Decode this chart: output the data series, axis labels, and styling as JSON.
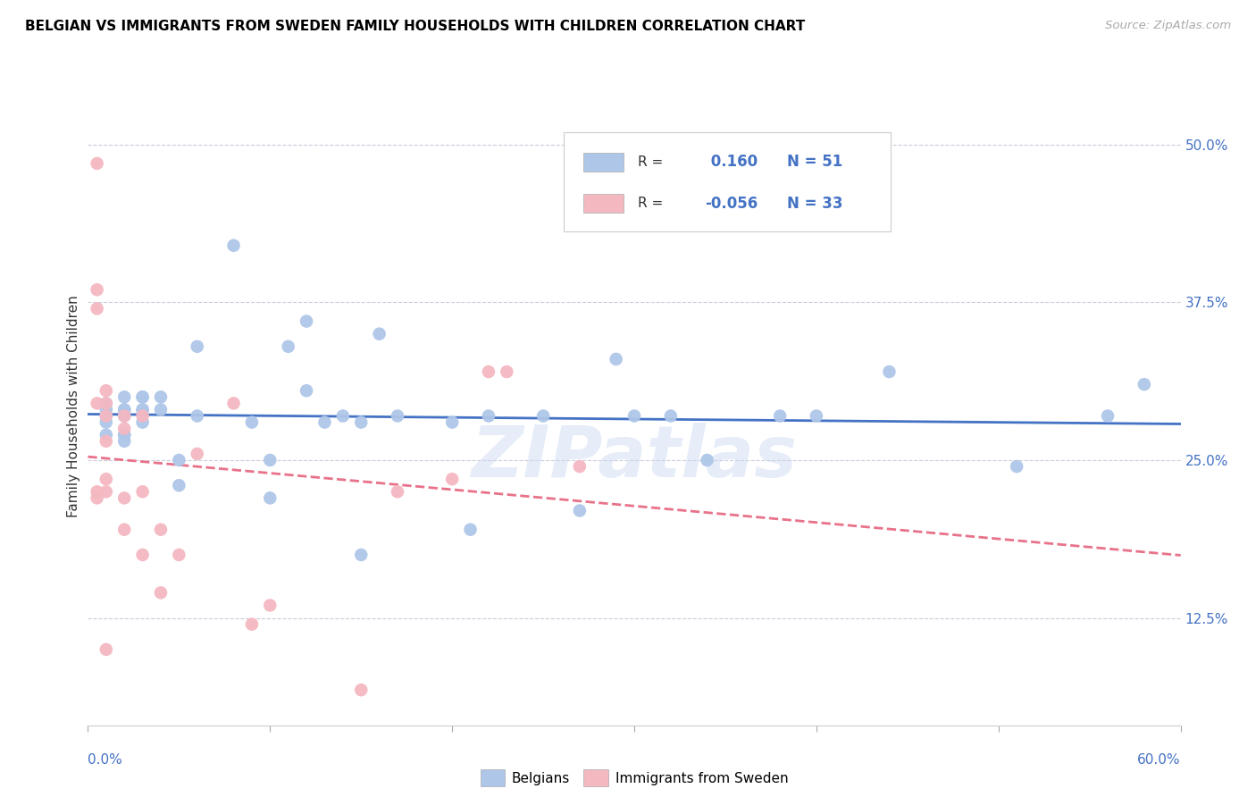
{
  "title": "BELGIAN VS IMMIGRANTS FROM SWEDEN FAMILY HOUSEHOLDS WITH CHILDREN CORRELATION CHART",
  "source": "Source: ZipAtlas.com",
  "ylabel": "Family Households with Children",
  "ytick_values": [
    0.125,
    0.25,
    0.375,
    0.5
  ],
  "ytick_labels": [
    "12.5%",
    "25.0%",
    "37.5%",
    "50.0%"
  ],
  "legend_label1": "Belgians",
  "legend_label2": "Immigrants from Sweden",
  "R1": 0.16,
  "N1": 51,
  "R2": -0.056,
  "N2": 33,
  "color_belgian": "#aec6e8",
  "color_swedish": "#f4b8c1",
  "line_color_belgian": "#4472c4",
  "line_color_swedish": "#e8728a",
  "watermark": "ZIPatlas",
  "xlim": [
    0.0,
    0.6
  ],
  "ylim": [
    0.04,
    0.545
  ],
  "belgians_x": [
    0.01,
    0.01,
    0.01,
    0.01,
    0.01,
    0.02,
    0.02,
    0.02,
    0.02,
    0.02,
    0.02,
    0.02,
    0.03,
    0.03,
    0.03,
    0.03,
    0.03,
    0.04,
    0.04,
    0.05,
    0.05,
    0.06,
    0.06,
    0.08,
    0.09,
    0.1,
    0.1,
    0.11,
    0.12,
    0.12,
    0.13,
    0.14,
    0.15,
    0.15,
    0.16,
    0.17,
    0.2,
    0.21,
    0.22,
    0.25,
    0.27,
    0.29,
    0.3,
    0.32,
    0.34,
    0.38,
    0.4,
    0.44,
    0.51,
    0.56,
    0.58
  ],
  "belgians_y": [
    0.285,
    0.295,
    0.28,
    0.27,
    0.29,
    0.285,
    0.29,
    0.27,
    0.29,
    0.3,
    0.265,
    0.27,
    0.3,
    0.3,
    0.29,
    0.28,
    0.29,
    0.3,
    0.29,
    0.25,
    0.23,
    0.285,
    0.34,
    0.42,
    0.28,
    0.25,
    0.22,
    0.34,
    0.36,
    0.305,
    0.28,
    0.285,
    0.28,
    0.175,
    0.35,
    0.285,
    0.28,
    0.195,
    0.285,
    0.285,
    0.21,
    0.33,
    0.285,
    0.285,
    0.25,
    0.285,
    0.285,
    0.32,
    0.245,
    0.285,
    0.31
  ],
  "swedish_x": [
    0.005,
    0.005,
    0.005,
    0.005,
    0.005,
    0.005,
    0.01,
    0.01,
    0.01,
    0.01,
    0.01,
    0.01,
    0.01,
    0.02,
    0.02,
    0.02,
    0.02,
    0.03,
    0.03,
    0.03,
    0.04,
    0.04,
    0.05,
    0.06,
    0.08,
    0.09,
    0.1,
    0.15,
    0.17,
    0.2,
    0.22,
    0.23,
    0.27
  ],
  "swedish_y": [
    0.485,
    0.385,
    0.37,
    0.295,
    0.225,
    0.22,
    0.305,
    0.295,
    0.285,
    0.265,
    0.235,
    0.225,
    0.1,
    0.285,
    0.275,
    0.22,
    0.195,
    0.285,
    0.225,
    0.175,
    0.195,
    0.145,
    0.175,
    0.255,
    0.295,
    0.12,
    0.135,
    0.068,
    0.225,
    0.235,
    0.32,
    0.32,
    0.245
  ]
}
